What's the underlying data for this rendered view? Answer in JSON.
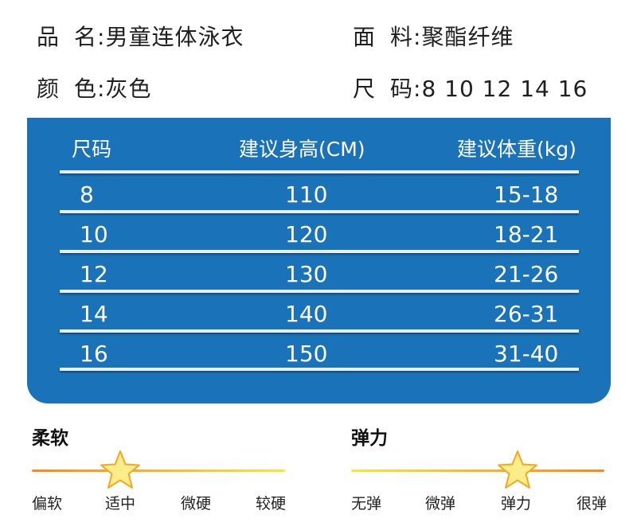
{
  "info": {
    "name": {
      "k1": "品",
      "k2": "名:",
      "value": "男童连体泳衣"
    },
    "material": {
      "k1": "面",
      "k2": "料:",
      "value": "聚酯纤维"
    },
    "color": {
      "k1": "颜",
      "k2": "色:",
      "value": "灰色"
    },
    "size": {
      "k1": "尺",
      "k2": "码:",
      "value": "8 10 12 14 16"
    }
  },
  "table": {
    "headers": [
      "尺码",
      "建议身高(CM)",
      "建议体重(kg)"
    ],
    "rows": [
      [
        "8",
        "110",
        "15-18"
      ],
      [
        "10",
        "120",
        "18-21"
      ],
      [
        "12",
        "130",
        "21-26"
      ],
      [
        "14",
        "140",
        "26-31"
      ],
      [
        "16",
        "150",
        "31-40"
      ]
    ]
  },
  "gauges": [
    {
      "title": "柔软",
      "labels": [
        "偏软",
        "适中",
        "微硬",
        "较硬"
      ],
      "selected_index": 1,
      "colors": [
        "#f28c1e",
        "#f7e63a"
      ]
    },
    {
      "title": "弹力",
      "labels": [
        "无弹",
        "微弹",
        "弹力",
        "很弹"
      ],
      "selected_index": 2,
      "colors": [
        "#f7e63a",
        "#f28c1e"
      ]
    }
  ],
  "colors": {
    "panel": "#1a73b8",
    "star_fill": "#fbee8a",
    "star_stroke": "#f5a623"
  }
}
